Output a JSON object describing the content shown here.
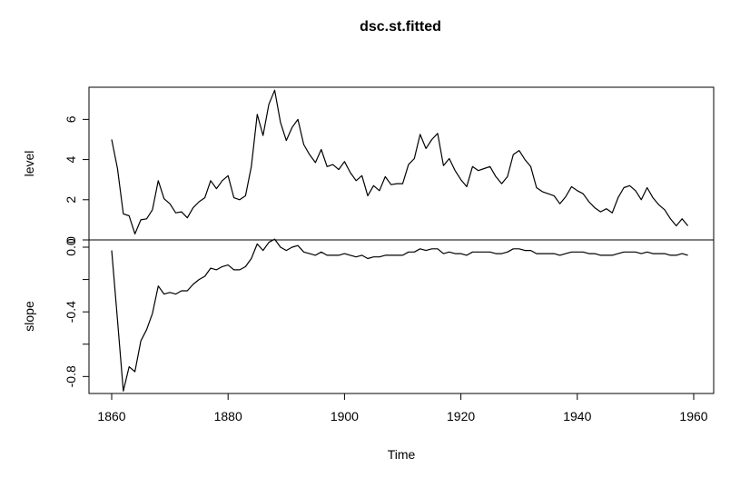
{
  "chart_data": {
    "type": "line",
    "title": "dsc.st.fitted",
    "xlabel": "Time",
    "x_ticks": [
      1860,
      1880,
      1900,
      1920,
      1940,
      1960
    ],
    "panels": [
      {
        "ylabel": "level",
        "y_ticks": [
          0,
          2,
          4,
          6
        ],
        "ylim": [
          0,
          7.6
        ],
        "series": [
          {
            "start": 1860,
            "values": [
              5.0,
              3.55,
              1.3,
              1.2,
              0.3,
              1.0,
              1.05,
              1.5,
              2.95,
              2.05,
              1.8,
              1.35,
              1.4,
              1.1,
              1.6,
              1.9,
              2.1,
              2.95,
              2.55,
              2.95,
              3.2,
              2.1,
              2.0,
              2.2,
              3.65,
              6.25,
              5.2,
              6.75,
              7.45,
              5.85,
              4.95,
              5.6,
              6.0,
              4.75,
              4.25,
              3.85,
              4.5,
              3.65,
              3.75,
              3.5,
              3.9,
              3.35,
              2.95,
              3.2,
              2.2,
              2.7,
              2.45,
              3.15,
              2.75,
              2.8,
              2.8,
              3.75,
              4.05,
              5.25,
              4.55,
              5.0,
              5.3,
              3.7,
              4.05,
              3.45,
              3.0,
              2.65,
              3.65,
              3.45,
              3.55,
              3.65,
              3.15,
              2.8,
              3.15,
              4.25,
              4.45,
              4.0,
              3.65,
              2.6,
              2.4,
              2.3,
              2.2,
              1.8,
              2.15,
              2.65,
              2.45,
              2.3,
              1.9,
              1.6,
              1.4,
              1.55,
              1.35,
              2.1,
              2.6,
              2.7,
              2.45,
              2.0,
              2.6,
              2.1,
              1.75,
              1.5,
              1.05,
              0.7,
              1.05,
              0.7
            ]
          }
        ]
      },
      {
        "ylabel": "slope",
        "y_ticks": [
          0.0,
          -0.2,
          -0.4,
          -0.6,
          -0.8
        ],
        "y_tick_labels": [
          "0.0",
          "",
          "-0.4",
          "",
          "-0.8"
        ],
        "ylim": [
          -0.905,
          0.045
        ],
        "series": [
          {
            "start": 1860,
            "values": [
              -0.02,
              -0.45,
              -0.89,
              -0.74,
              -0.77,
              -0.58,
              -0.51,
              -0.41,
              -0.24,
              -0.29,
              -0.28,
              -0.29,
              -0.27,
              -0.27,
              -0.23,
              -0.2,
              -0.18,
              -0.13,
              -0.14,
              -0.12,
              -0.11,
              -0.14,
              -0.14,
              -0.12,
              -0.07,
              0.02,
              -0.02,
              0.03,
              0.05,
              0.0,
              -0.02,
              0.0,
              0.01,
              -0.03,
              -0.04,
              -0.05,
              -0.03,
              -0.05,
              -0.05,
              -0.05,
              -0.04,
              -0.05,
              -0.06,
              -0.05,
              -0.07,
              -0.06,
              -0.06,
              -0.05,
              -0.05,
              -0.05,
              -0.05,
              -0.03,
              -0.03,
              -0.01,
              -0.02,
              -0.01,
              -0.01,
              -0.04,
              -0.03,
              -0.04,
              -0.04,
              -0.05,
              -0.03,
              -0.03,
              -0.03,
              -0.03,
              -0.04,
              -0.04,
              -0.03,
              -0.01,
              -0.01,
              -0.02,
              -0.02,
              -0.04,
              -0.04,
              -0.04,
              -0.04,
              -0.05,
              -0.04,
              -0.03,
              -0.03,
              -0.03,
              -0.04,
              -0.04,
              -0.05,
              -0.05,
              -0.05,
              -0.04,
              -0.03,
              -0.03,
              -0.03,
              -0.04,
              -0.03,
              -0.04,
              -0.04,
              -0.04,
              -0.05,
              -0.05,
              -0.04,
              -0.05
            ]
          }
        ]
      }
    ]
  }
}
